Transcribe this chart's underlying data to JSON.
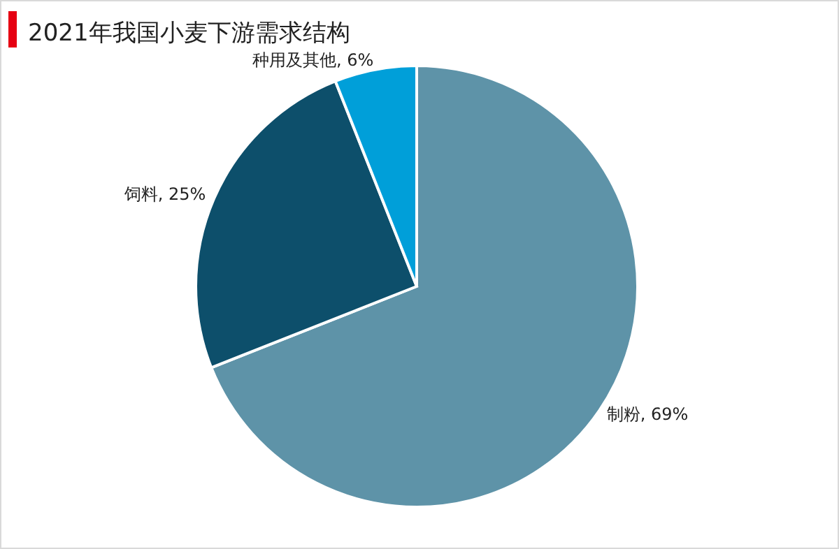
{
  "chart_data": {
    "type": "pie",
    "title": "2021年我国小麦下游需求结构",
    "categories": [
      "制粉",
      "饲料",
      "种用及其他"
    ],
    "values": [
      69,
      25,
      6
    ],
    "colors": [
      "#5e93a8",
      "#0d4f6b",
      "#009fd9"
    ],
    "value_labels": [
      "69%",
      "25%",
      "6%"
    ]
  }
}
